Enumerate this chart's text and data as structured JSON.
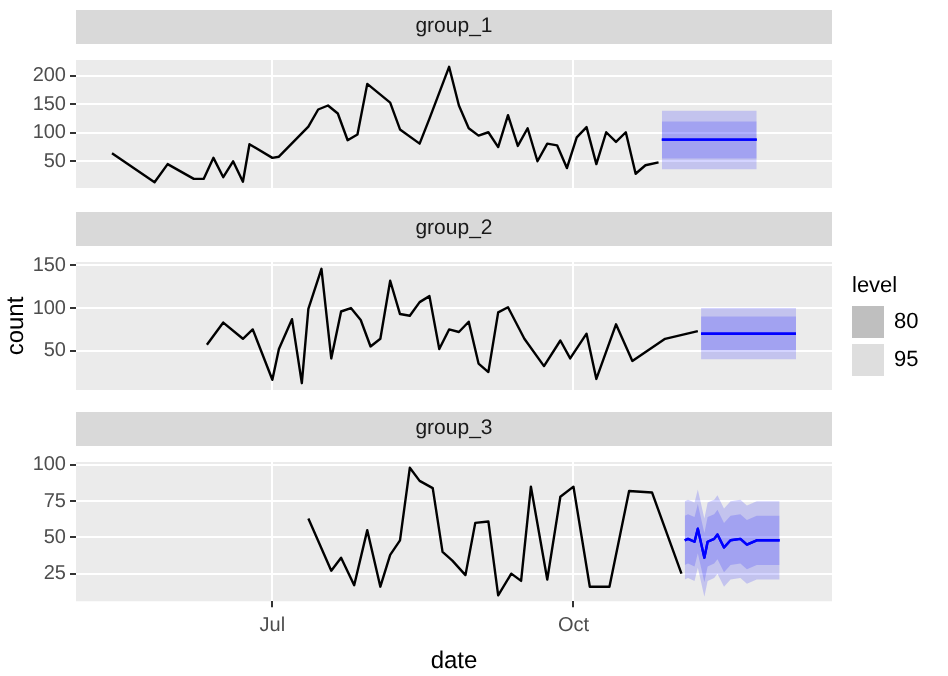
{
  "chart_data": [
    {
      "type": "line",
      "title": "group_1",
      "xlim": [
        "--05-02",
        "--12-19"
      ],
      "xticks": [
        {
          "value": "--07-01",
          "label": null
        },
        {
          "value": "--10-01",
          "label": null
        }
      ],
      "ylim": [
        3,
        228
      ],
      "yticks": [
        50,
        100,
        150,
        200
      ],
      "grid": true,
      "tick_labels": "y",
      "series": [
        {
          "color": "#000000",
          "x": [
            "--05-13",
            "--05-26",
            "--05-30",
            "--06-07",
            "--06-10",
            "--06-13",
            "--06-16",
            "--06-19",
            "--06-22",
            "--06-24",
            "--07-01",
            "--07-03",
            "--07-12",
            "--07-15",
            "--07-18",
            "--07-21",
            "--07-24",
            "--07-27",
            "--07-30",
            "--08-06",
            "--08-09",
            "--08-15",
            "--08-18",
            "--08-24",
            "--08-27",
            "--08-30",
            "--09-02",
            "--09-05",
            "--09-08",
            "--09-11",
            "--09-14",
            "--09-17",
            "--09-20",
            "--09-23",
            "--09-26",
            "--09-29",
            "--10-02",
            "--10-05",
            "--10-08",
            "--10-11",
            "--10-14",
            "--10-17",
            "--10-20",
            "--10-23",
            "--10-27"
          ],
          "values": [
            64,
            13,
            45,
            19,
            19,
            56,
            22,
            50,
            14,
            80,
            56,
            58,
            111,
            141,
            148,
            134,
            87,
            97,
            186,
            153,
            106,
            81,
            125,
            216,
            148,
            108,
            95,
            101,
            75,
            131,
            77,
            108,
            50,
            81,
            78,
            38,
            92,
            110,
            45,
            101,
            84,
            101,
            28,
            43,
            48
          ]
        },
        {
          "color": "#0000ff",
          "x": [
            "--10-28",
            "--11-26"
          ],
          "values": [
            88,
            88
          ],
          "lower": [
            55,
            55
          ],
          "upper": [
            120,
            120
          ]
        },
        {
          "color": "#0000ff",
          "x": [
            "--10-28",
            "--11-26"
          ],
          "values": [
            88,
            88
          ],
          "lower": [
            36,
            36
          ],
          "upper": [
            139,
            139
          ]
        }
      ]
    },
    {
      "type": "line",
      "title": "group_2",
      "ylabel": "count",
      "legend": "right",
      "legend_title": "level",
      "xlim": [
        "--05-02",
        "--12-19"
      ],
      "xticks": [
        {
          "value": "--07-01",
          "label": null
        },
        {
          "value": "--10-01",
          "label": null
        }
      ],
      "ylim": [
        4,
        154
      ],
      "yticks": [
        50,
        100,
        150
      ],
      "grid": true,
      "tick_labels": "y",
      "series": [
        {
          "color": "#000000",
          "x": [
            "--06-11",
            "--06-16",
            "--06-22",
            "--06-25",
            "--07-01",
            "--07-03",
            "--07-07",
            "--07-10",
            "--07-12",
            "--07-16",
            "--07-19",
            "--07-22",
            "--07-25",
            "--07-28",
            "--07-31",
            "--08-03",
            "--08-06",
            "--08-09",
            "--08-12",
            "--08-15",
            "--08-18",
            "--08-21",
            "--08-24",
            "--08-27",
            "--08-30",
            "--09-02",
            "--09-05",
            "--09-08",
            "--09-11",
            "--09-16",
            "--09-22",
            "--09-27",
            "--09-30",
            "--10-05",
            "--10-08",
            "--10-14",
            "--10-19",
            "--10-29",
            "--11-08"
          ],
          "values": [
            57,
            83,
            64,
            75,
            16,
            52,
            87,
            12,
            99,
            146,
            41,
            96,
            100,
            86,
            55,
            64,
            132,
            93,
            91,
            107,
            114,
            52,
            75,
            72,
            84,
            35,
            25,
            95,
            101,
            64,
            32,
            62,
            41,
            70,
            17,
            81,
            38,
            64,
            73
          ]
        },
        {
          "name": "80",
          "color": "#0000ff",
          "x": [
            "--11-09",
            "--12-08"
          ],
          "values": [
            70,
            70
          ],
          "lower": [
            51,
            51
          ],
          "upper": [
            90,
            90
          ]
        },
        {
          "name": "95",
          "color": "#0000ff",
          "x": [
            "--11-09",
            "--12-08"
          ],
          "values": [
            70,
            70
          ],
          "lower": [
            40,
            40
          ],
          "upper": [
            100,
            100
          ]
        }
      ]
    },
    {
      "type": "line",
      "title": "group_3",
      "xlabel": "date",
      "xlim": [
        "--05-02",
        "--12-19"
      ],
      "xticks": [
        {
          "value": "--07-01",
          "label": "Jul"
        },
        {
          "value": "--10-01",
          "label": "Oct"
        }
      ],
      "ylim": [
        6,
        102
      ],
      "yticks": [
        25,
        50,
        75,
        100
      ],
      "grid": true,
      "series": [
        {
          "color": "#000000",
          "x": [
            "--07-12",
            "--07-19",
            "--07-22",
            "--07-26",
            "--07-30",
            "--08-03",
            "--08-06",
            "--08-09",
            "--08-12",
            "--08-15",
            "--08-19",
            "--08-22",
            "--08-25",
            "--08-29",
            "--09-01",
            "--09-05",
            "--09-08",
            "--09-12",
            "--09-15",
            "--09-18",
            "--09-23",
            "--09-27",
            "--10-01",
            "--10-06",
            "--10-12",
            "--10-18",
            "--10-25",
            "--11-03"
          ],
          "values": [
            63,
            27,
            36,
            17,
            55,
            16,
            38,
            48,
            98,
            89,
            84,
            40,
            34,
            24,
            60,
            61,
            10,
            25,
            20,
            85,
            21,
            78,
            85,
            16,
            16,
            82,
            81,
            25
          ]
        },
        {
          "color": "#0000ff",
          "x": [
            "--11-04",
            "--11-05",
            "--11-07",
            "--11-08",
            "--11-10",
            "--11-11",
            "--11-13",
            "--11-14",
            "--11-16",
            "--11-18",
            "--11-21",
            "--11-23",
            "--11-26",
            "--11-29",
            "--12-03"
          ],
          "values": [
            48,
            49,
            47,
            56,
            36,
            47,
            49,
            52,
            43,
            48,
            49,
            45,
            48,
            48,
            48
          ],
          "lower": [
            31,
            32,
            30,
            39,
            19,
            30,
            32,
            35,
            26,
            31,
            32,
            28,
            31,
            31,
            31
          ],
          "upper": [
            65,
            66,
            64,
            73,
            53,
            64,
            66,
            69,
            60,
            65,
            66,
            62,
            65,
            65,
            65
          ]
        },
        {
          "color": "#0000ff",
          "x": [
            "--11-04",
            "--11-05",
            "--11-07",
            "--11-08",
            "--11-10",
            "--11-11",
            "--11-13",
            "--11-14",
            "--11-16",
            "--11-18",
            "--11-21",
            "--11-23",
            "--11-26",
            "--11-29",
            "--12-03"
          ],
          "values": [
            48,
            49,
            47,
            56,
            36,
            47,
            49,
            52,
            43,
            48,
            49,
            45,
            48,
            48,
            48
          ],
          "lower": [
            21,
            22,
            20,
            29,
            9,
            20,
            22,
            25,
            16,
            21,
            22,
            18,
            21,
            21,
            21
          ],
          "upper": [
            75,
            76,
            74,
            83,
            63,
            74,
            76,
            79,
            70,
            75,
            76,
            72,
            75,
            75,
            75
          ]
        }
      ]
    }
  ]
}
